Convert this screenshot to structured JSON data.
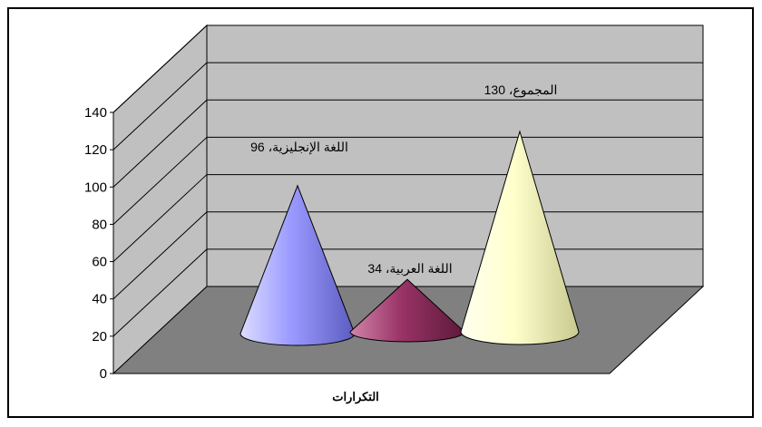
{
  "chart_data": {
    "type": "bar",
    "style": "3d-cone",
    "categories": [
      "التكرارات"
    ],
    "series": [
      {
        "name": "اللغة الإنجليزية",
        "values": [
          96
        ],
        "color": "#9999ff"
      },
      {
        "name": "اللغة العربية",
        "values": [
          34
        ],
        "color": "#993366"
      },
      {
        "name": "المجموع",
        "values": [
          130
        ],
        "color": "#ffffcc"
      }
    ],
    "data_labels": [
      "اللغة الإنجليزية، 96",
      "اللغة العربية، 34",
      "المجموع، 130"
    ],
    "xlabel": "التكرارات",
    "ylabel": "",
    "ylim": [
      0,
      140
    ],
    "yticks": [
      "0",
      "20",
      "40",
      "60",
      "80",
      "100",
      "120",
      "140"
    ],
    "grid": true,
    "legend": "none",
    "colors": {
      "walls": "#c0c0c0",
      "floor": "#808080"
    }
  }
}
